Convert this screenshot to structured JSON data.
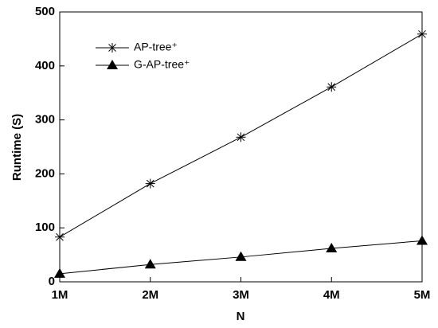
{
  "chart_data": {
    "type": "line",
    "x_label": "N",
    "y_label": "Runtime (S)",
    "categories": [
      "1M",
      "2M",
      "3M",
      "4M",
      "5M"
    ],
    "series": [
      {
        "name": "AP-tree⁺",
        "color": "#000000",
        "marker": "asterisk",
        "values": [
          83,
          182,
          268,
          361,
          459
        ]
      },
      {
        "name": "G-AP-tree⁺",
        "color": "#000000",
        "marker": "triangle",
        "values": [
          15,
          32,
          46,
          62,
          76
        ]
      }
    ],
    "ylim": [
      0,
      500
    ],
    "yticks": [
      0,
      100,
      200,
      300,
      400,
      500
    ],
    "legend": "upper left",
    "grid": false
  }
}
